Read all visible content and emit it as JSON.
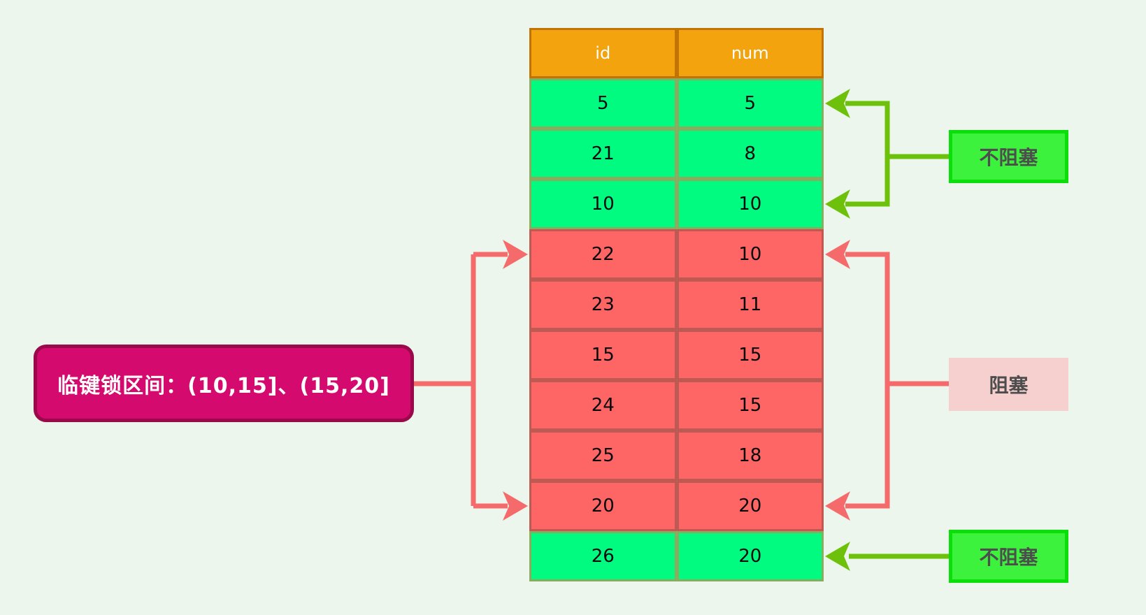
{
  "annotations": {
    "lock_range": "临键锁区间：(10,15]、(15,20]",
    "non_blocking_top": "不阻塞",
    "blocking": "阻塞",
    "non_blocking_bottom": "不阻塞"
  },
  "table": {
    "columns": [
      "id",
      "num"
    ],
    "rows": [
      {
        "id": "5",
        "num": "5",
        "state": "unlocked"
      },
      {
        "id": "21",
        "num": "8",
        "state": "unlocked"
      },
      {
        "id": "10",
        "num": "10",
        "state": "unlocked"
      },
      {
        "id": "22",
        "num": "10",
        "state": "locked"
      },
      {
        "id": "23",
        "num": "11",
        "state": "locked"
      },
      {
        "id": "15",
        "num": "15",
        "state": "locked"
      },
      {
        "id": "24",
        "num": "15",
        "state": "locked"
      },
      {
        "id": "25",
        "num": "18",
        "state": "locked"
      },
      {
        "id": "20",
        "num": "20",
        "state": "locked"
      },
      {
        "id": "26",
        "num": "20",
        "state": "unlocked"
      }
    ]
  },
  "colors": {
    "bg": "#ECF6EC",
    "headerBg": "#F2A30D",
    "headerBorder": "#C17403",
    "headerText": "#FFFFFF",
    "greenCell": "#00FB80",
    "greenBorder": "#8AAC5E",
    "redCell": "#FE6565",
    "redBorder": "#BE5A54",
    "cellText": "#0A0A0A",
    "arrowGreen": "#6DC10B",
    "arrowRed": "#F56B6B",
    "labelGreenBg": "#3CF23C",
    "labelGreenBorder": "#0ADF0A",
    "labelPinkBg": "#F6CFCF",
    "labelText": "#4D4D4D",
    "calloutBg": "#D40A6E",
    "calloutBorder": "#9A0A4A",
    "calloutText": "#FFFFFF"
  }
}
